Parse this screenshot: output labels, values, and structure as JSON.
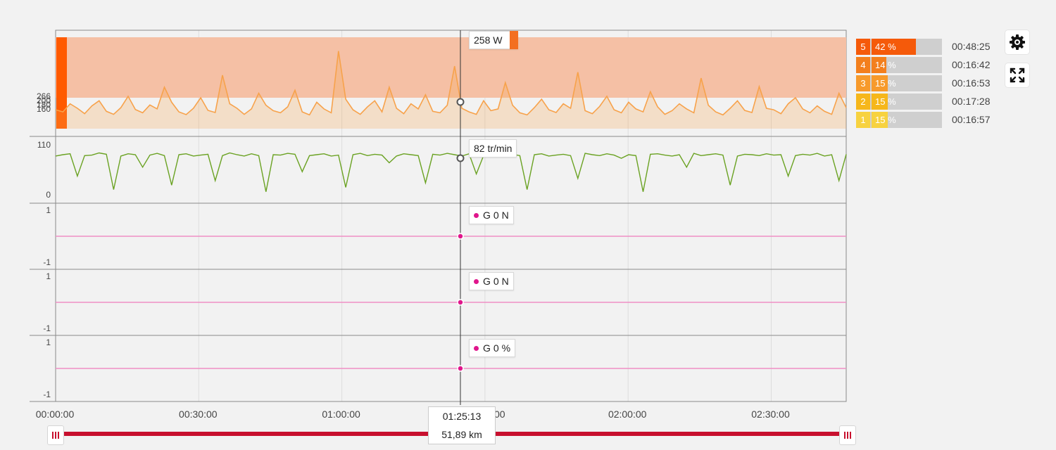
{
  "colors": {
    "power_line": "#f7a24b",
    "power_band": "#f5c0a5",
    "power_spike": "#ff5a00",
    "cadence_line": "#6aa222",
    "flat_line": "#f08fc5",
    "marker": "#e0168c",
    "range_bar": "#c8102e"
  },
  "chart_data": [
    {
      "type": "line",
      "panel": "power",
      "ytick_labels": [
        "266",
        "200",
        "180",
        "160"
      ],
      "tooltip": "258 W",
      "series": [
        {
          "values": [
            185,
            178,
            205,
            190,
            172,
            198,
            215,
            180,
            170,
            192,
            230,
            186,
            175,
            201,
            188,
            260,
            210,
            178,
            169,
            190,
            225,
            183,
            176,
            300,
            205,
            190,
            170,
            188,
            240,
            200,
            182,
            175,
            195,
            250,
            178,
            168,
            210,
            188,
            175,
            380,
            220,
            185,
            170,
            195,
            215,
            178,
            260,
            190,
            172,
            205,
            188,
            235,
            180,
            175,
            200,
            330,
            190,
            178,
            170,
            215,
            182,
            188,
            275,
            200,
            175,
            168,
            192,
            220,
            185,
            176,
            205,
            190,
            310,
            182,
            172,
            196,
            230,
            185,
            175,
            210,
            188,
            178,
            245,
            195,
            170,
            182,
            205,
            188,
            175,
            290,
            200,
            178,
            168,
            190,
            215,
            183,
            176,
            262,
            190,
            185,
            172,
            205,
            225,
            188,
            175,
            198,
            180,
            170,
            240,
            192
          ]
        }
      ]
    },
    {
      "type": "line",
      "panel": "cadence",
      "ytick_labels": [
        "110",
        "0"
      ],
      "ylim": [
        0,
        110
      ],
      "tooltip": "82 tr/min",
      "series": [
        {
          "values": [
            85,
            88,
            90,
            40,
            86,
            87,
            92,
            89,
            10,
            85,
            90,
            88,
            60,
            87,
            91,
            86,
            20,
            88,
            90,
            85,
            87,
            89,
            30,
            86,
            92,
            88,
            85,
            90,
            86,
            5,
            88,
            87,
            91,
            89,
            50,
            86,
            88,
            90,
            85,
            87,
            15,
            88,
            91,
            86,
            89,
            87,
            70,
            85,
            90,
            88,
            86,
            25,
            89,
            87,
            91,
            88,
            85,
            90,
            45,
            86,
            88,
            87,
            92,
            89,
            86,
            10,
            88,
            90,
            85,
            87,
            89,
            86,
            35,
            91,
            88,
            86,
            90,
            87,
            80,
            88,
            86,
            5,
            89,
            90,
            87,
            85,
            88,
            60,
            91,
            86,
            88,
            90,
            87,
            20,
            85,
            89,
            88,
            86,
            90,
            87,
            88,
            40,
            86,
            89,
            87,
            91,
            85,
            88,
            30,
            89
          ]
        }
      ]
    },
    {
      "type": "line",
      "panel": "force-1",
      "ytick_labels": [
        "1",
        "-1"
      ],
      "ylim": [
        -1,
        1
      ],
      "tooltip": {
        "label": "G",
        "value": "0 N"
      },
      "series": [
        {
          "values": [
            0,
            0
          ]
        }
      ]
    },
    {
      "type": "line",
      "panel": "force-2",
      "ytick_labels": [
        "1",
        "-1"
      ],
      "ylim": [
        -1,
        1
      ],
      "tooltip": {
        "label": "G",
        "value": "0 N"
      },
      "series": [
        {
          "values": [
            0,
            0
          ]
        }
      ]
    },
    {
      "type": "line",
      "panel": "balance",
      "ytick_labels": [
        "1",
        "-1"
      ],
      "ylim": [
        -1,
        1
      ],
      "tooltip": {
        "label": "G",
        "value": "0 %"
      },
      "series": [
        {
          "values": [
            0,
            0
          ]
        }
      ]
    }
  ],
  "x_axis": {
    "labels": [
      "00:00:00",
      "00:30:00",
      "01:00:00",
      "",
      "02:00:00",
      "02:30:00"
    ],
    "partial_label": "00",
    "cursor_fraction": 0.512
  },
  "cursor": {
    "time": "01:25:13",
    "distance": "51,89 km"
  },
  "zones": [
    {
      "num": "5",
      "pct": "42 %",
      "fraction": 0.42,
      "time": "00:48:25",
      "color": "#f55a0a"
    },
    {
      "num": "4",
      "pct": "14 %",
      "fraction": 0.14,
      "time": "00:16:42",
      "color": "#f37f1d"
    },
    {
      "num": "3",
      "pct": "15 %",
      "fraction": 0.15,
      "time": "00:16:53",
      "color": "#f79a2b"
    },
    {
      "num": "2",
      "pct": "15 %",
      "fraction": 0.15,
      "time": "00:17:28",
      "color": "#f6b71b"
    },
    {
      "num": "1",
      "pct": "15 %",
      "fraction": 0.15,
      "time": "00:16:57",
      "color": "#f7d240"
    }
  ],
  "icons": {
    "settings": "gear-icon",
    "fullscreen": "expand-icon",
    "handle": "grip-icon"
  }
}
